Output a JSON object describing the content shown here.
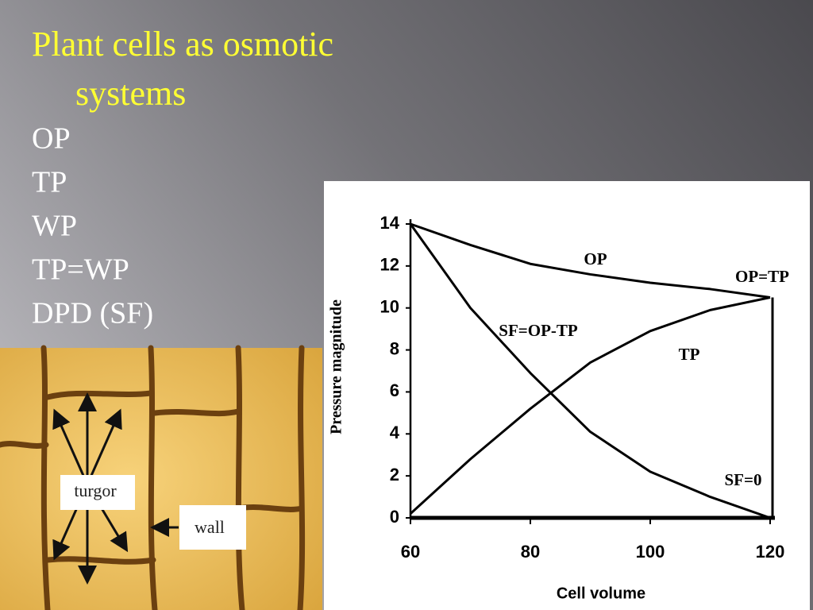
{
  "slide": {
    "title": "Plant cells as osmotic systems",
    "bullets": [
      "OP",
      "TP",
      "WP",
      "TP=WP",
      "DPD (SF)"
    ]
  },
  "photo": {
    "labels": [
      "turgor",
      "wall"
    ]
  },
  "chart_data": {
    "type": "line",
    "x": [
      60,
      70,
      80,
      90,
      100,
      110,
      120
    ],
    "series": [
      {
        "name": "OP",
        "color": "#000000",
        "values": [
          14,
          13,
          12.1,
          11.6,
          11.2,
          10.9,
          10.5
        ]
      },
      {
        "name": "TP",
        "color": "#000000",
        "values": [
          0.2,
          2.8,
          5.2,
          7.4,
          8.9,
          9.9,
          10.5
        ]
      },
      {
        "name": "SF=OP-TP",
        "color": "#000000",
        "values": [
          14,
          10,
          6.9,
          4.1,
          2.2,
          1,
          0
        ]
      }
    ],
    "annotations": [
      "OP=TP",
      "SF=0"
    ],
    "xlabel": "Cell volume",
    "ylabel": "Pressure magnitude",
    "xlim": [
      60,
      120
    ],
    "xticks": [
      60,
      80,
      100,
      120
    ],
    "ylim": [
      0,
      14
    ],
    "yticks": [
      0,
      2,
      4,
      6,
      8,
      10,
      12,
      14
    ]
  }
}
